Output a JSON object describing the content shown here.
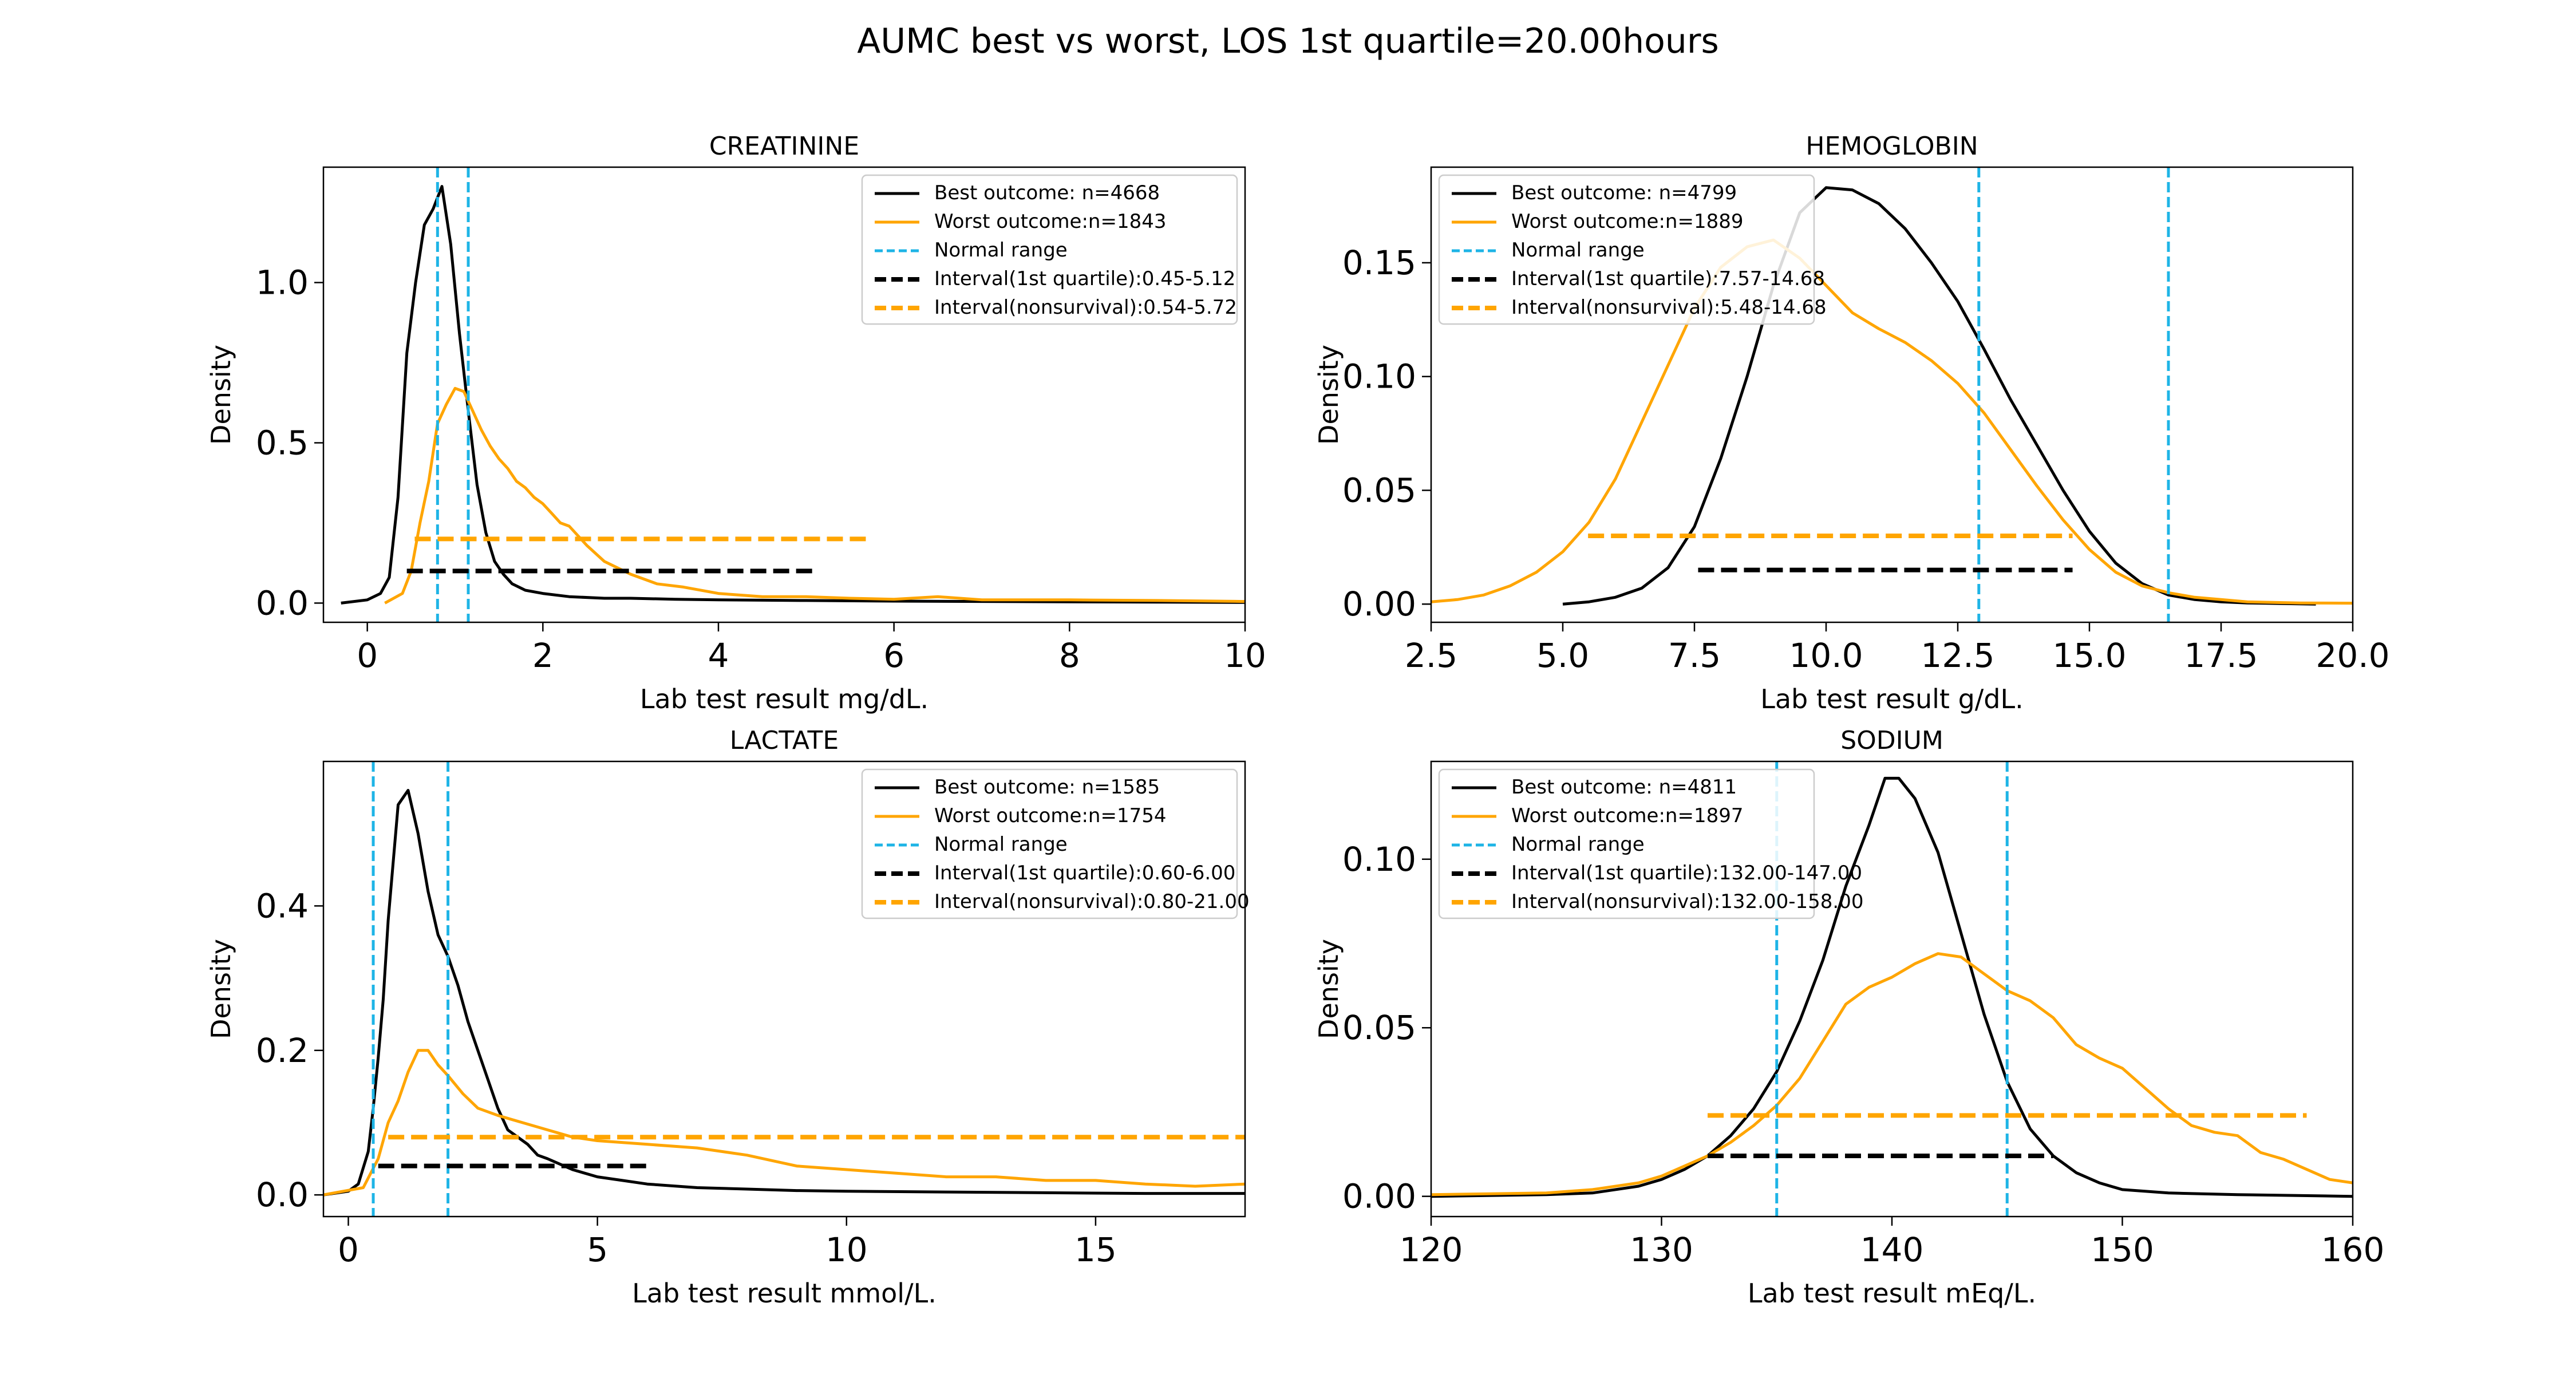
{
  "suptitle": "AUMC best vs worst, LOS 1st quartile=20.00hours",
  "colors": {
    "best": "#000000",
    "worst": "#FFA500",
    "normal": "#1EB4E6"
  },
  "chart_data": [
    {
      "type": "line",
      "title": "CREATININE",
      "xlabel": "Lab test result mg/dL.",
      "ylabel": "Density",
      "xlim": [
        -0.5,
        10
      ],
      "ylim": [
        -0.06,
        1.36
      ],
      "xticks": [
        0,
        2,
        4,
        6,
        8,
        10
      ],
      "xtick_labels": [
        "0",
        "2",
        "4",
        "6",
        "8",
        "10"
      ],
      "yticks": [
        0,
        0.5,
        1.0
      ],
      "ytick_labels": [
        "0.0",
        "0.5",
        "1.0"
      ],
      "legend": {
        "position": "upper right",
        "entries": [
          "Best outcome: n=4668",
          "Worst outcome:n=1843",
          "Normal range",
          "Interval(1st quartile):0.45-5.12",
          "Interval(nonsurvival):0.54-5.72"
        ]
      },
      "series": [
        {
          "name": "Best outcome: n=4668",
          "role": "best",
          "x": [
            -0.3,
            0,
            0.15,
            0.25,
            0.35,
            0.45,
            0.55,
            0.65,
            0.75,
            0.85,
            0.95,
            1.05,
            1.15,
            1.25,
            1.35,
            1.45,
            1.55,
            1.65,
            1.8,
            2.0,
            2.3,
            2.7,
            3.0,
            3.5,
            4.0,
            5.0,
            6.0,
            7.0,
            8.0,
            9.0,
            10.0
          ],
          "y": [
            0.0,
            0.01,
            0.03,
            0.08,
            0.33,
            0.78,
            1.0,
            1.18,
            1.23,
            1.3,
            1.12,
            0.84,
            0.6,
            0.37,
            0.22,
            0.13,
            0.09,
            0.06,
            0.04,
            0.03,
            0.02,
            0.015,
            0.015,
            0.012,
            0.01,
            0.008,
            0.006,
            0.005,
            0.004,
            0.003,
            0.002
          ]
        },
        {
          "name": "Worst outcome:n=1843",
          "role": "worst",
          "x": [
            0.2,
            0.4,
            0.5,
            0.6,
            0.7,
            0.8,
            0.9,
            1.0,
            1.1,
            1.2,
            1.3,
            1.4,
            1.5,
            1.6,
            1.7,
            1.8,
            1.9,
            2.0,
            2.1,
            2.2,
            2.3,
            2.5,
            2.7,
            3.0,
            3.3,
            3.6,
            4.0,
            4.5,
            5.0,
            5.5,
            6.0,
            6.5,
            7.0,
            8.0,
            9.0,
            10.0
          ],
          "y": [
            0.0,
            0.03,
            0.1,
            0.25,
            0.38,
            0.56,
            0.62,
            0.67,
            0.66,
            0.6,
            0.54,
            0.49,
            0.45,
            0.42,
            0.38,
            0.36,
            0.33,
            0.31,
            0.28,
            0.25,
            0.24,
            0.18,
            0.13,
            0.09,
            0.06,
            0.05,
            0.03,
            0.02,
            0.02,
            0.015,
            0.012,
            0.02,
            0.01,
            0.01,
            0.008,
            0.005
          ]
        }
      ],
      "normal_range": [
        0.8,
        1.15
      ],
      "intervals": [
        {
          "name": "Interval(1st quartile):0.45-5.12",
          "role": "best",
          "from": 0.45,
          "to": 5.12,
          "y": 0.1
        },
        {
          "name": "Interval(nonsurvival):0.54-5.72",
          "role": "worst",
          "from": 0.54,
          "to": 5.72,
          "y": 0.2
        }
      ]
    },
    {
      "type": "line",
      "title": "HEMOGLOBIN",
      "xlabel": "Lab test result g/dL.",
      "ylabel": "Density",
      "xlim": [
        2.5,
        20
      ],
      "ylim": [
        -0.008,
        0.192
      ],
      "xticks": [
        2.5,
        5,
        7.5,
        10,
        12.5,
        15,
        17.5,
        20
      ],
      "xtick_labels": [
        "2.5",
        "5.0",
        "7.5",
        "10.0",
        "12.5",
        "15.0",
        "17.5",
        "20.0"
      ],
      "yticks": [
        0,
        0.05,
        0.1,
        0.15
      ],
      "ytick_labels": [
        "0.00",
        "0.05",
        "0.10",
        "0.15"
      ],
      "legend": {
        "position": "upper left",
        "entries": [
          "Best outcome: n=4799",
          "Worst outcome:n=1889",
          "Normal range",
          "Interval(1st quartile):7.57-14.68",
          "Interval(nonsurvival):5.48-14.68"
        ]
      },
      "series": [
        {
          "name": "Best outcome: n=4799",
          "role": "best",
          "x": [
            5.0,
            5.5,
            6.0,
            6.5,
            7.0,
            7.5,
            8.0,
            8.5,
            9.0,
            9.5,
            10.0,
            10.5,
            11.0,
            11.5,
            12.0,
            12.5,
            13.0,
            13.5,
            14.0,
            14.5,
            15.0,
            15.5,
            16.0,
            16.5,
            17.0,
            17.5,
            18.0,
            19.3
          ],
          "y": [
            0.0,
            0.001,
            0.003,
            0.007,
            0.016,
            0.034,
            0.064,
            0.1,
            0.14,
            0.172,
            0.183,
            0.182,
            0.176,
            0.165,
            0.15,
            0.133,
            0.112,
            0.09,
            0.07,
            0.05,
            0.032,
            0.018,
            0.009,
            0.004,
            0.002,
            0.001,
            0.0005,
            0.0
          ]
        },
        {
          "name": "Worst outcome:n=1889",
          "role": "worst",
          "x": [
            2.5,
            3.0,
            3.5,
            4.0,
            4.5,
            5.0,
            5.5,
            6.0,
            6.5,
            7.0,
            7.5,
            8.0,
            8.5,
            9.0,
            9.5,
            10.0,
            10.5,
            11.0,
            11.5,
            12.0,
            12.5,
            13.0,
            13.5,
            14.0,
            14.5,
            15.0,
            15.5,
            16.0,
            16.5,
            17.0,
            17.5,
            18.0,
            19.0,
            20.0
          ],
          "y": [
            0.001,
            0.002,
            0.004,
            0.008,
            0.014,
            0.023,
            0.036,
            0.055,
            0.08,
            0.105,
            0.13,
            0.148,
            0.157,
            0.16,
            0.152,
            0.14,
            0.128,
            0.121,
            0.115,
            0.107,
            0.097,
            0.084,
            0.068,
            0.052,
            0.037,
            0.024,
            0.014,
            0.008,
            0.005,
            0.003,
            0.002,
            0.001,
            0.0005,
            0.0004
          ]
        }
      ],
      "normal_range": [
        12.9,
        16.5
      ],
      "intervals": [
        {
          "name": "Interval(1st quartile):7.57-14.68",
          "role": "best",
          "from": 7.57,
          "to": 14.68,
          "y": 0.015
        },
        {
          "name": "Interval(nonsurvival):5.48-14.68",
          "role": "worst",
          "from": 5.48,
          "to": 14.68,
          "y": 0.03
        }
      ]
    },
    {
      "type": "line",
      "title": "LACTATE",
      "xlabel": "Lab test result mmol/L.",
      "ylabel": "Density",
      "xlim": [
        -0.5,
        18
      ],
      "ylim": [
        -0.03,
        0.6
      ],
      "xticks": [
        0,
        5,
        10,
        15
      ],
      "xtick_labels": [
        "0",
        "5",
        "10",
        "15"
      ],
      "yticks": [
        0,
        0.2,
        0.4
      ],
      "ytick_labels": [
        "0.0",
        "0.2",
        "0.4"
      ],
      "legend": {
        "position": "upper right",
        "entries": [
          "Best outcome: n=1585",
          "Worst outcome:n=1754",
          "Normal range",
          "Interval(1st quartile):0.60-6.00",
          "Interval(nonsurvival):0.80-21.00"
        ]
      },
      "series": [
        {
          "name": "Best outcome: n=1585",
          "role": "best",
          "x": [
            -0.5,
            0,
            0.2,
            0.4,
            0.5,
            0.6,
            0.7,
            0.8,
            0.9,
            1.0,
            1.1,
            1.2,
            1.4,
            1.6,
            1.8,
            2.0,
            2.2,
            2.4,
            2.6,
            2.8,
            3.0,
            3.2,
            3.4,
            3.6,
            3.8,
            4.0,
            4.5,
            5.0,
            5.5,
            6.0,
            7.0,
            8.0,
            9.0,
            10.0,
            12.0,
            14.0,
            16.0,
            18.0
          ],
          "y": [
            0.0,
            0.005,
            0.015,
            0.06,
            0.12,
            0.19,
            0.27,
            0.38,
            0.46,
            0.54,
            0.55,
            0.56,
            0.5,
            0.42,
            0.36,
            0.33,
            0.29,
            0.24,
            0.2,
            0.16,
            0.12,
            0.09,
            0.08,
            0.07,
            0.055,
            0.05,
            0.035,
            0.025,
            0.02,
            0.015,
            0.01,
            0.008,
            0.006,
            0.005,
            0.004,
            0.003,
            0.002,
            0.002
          ]
        },
        {
          "name": "Worst outcome:n=1754",
          "role": "worst",
          "x": [
            -0.5,
            0.3,
            0.6,
            0.8,
            1.0,
            1.2,
            1.4,
            1.6,
            1.8,
            2.0,
            2.3,
            2.6,
            3.0,
            3.5,
            4.0,
            4.5,
            5.0,
            6.0,
            7.0,
            8.0,
            9.0,
            10.0,
            11.0,
            12.0,
            13.0,
            14.0,
            15.0,
            16.0,
            17.0,
            18.0
          ],
          "y": [
            0.0,
            0.01,
            0.05,
            0.1,
            0.13,
            0.17,
            0.2,
            0.2,
            0.18,
            0.165,
            0.14,
            0.12,
            0.11,
            0.1,
            0.09,
            0.08,
            0.075,
            0.07,
            0.065,
            0.055,
            0.04,
            0.035,
            0.03,
            0.025,
            0.025,
            0.02,
            0.02,
            0.015,
            0.012,
            0.015
          ]
        }
      ],
      "normal_range": [
        0.5,
        2.0
      ],
      "intervals": [
        {
          "name": "Interval(1st quartile):0.60-6.00",
          "role": "best",
          "from": 0.6,
          "to": 6.0,
          "y": 0.04
        },
        {
          "name": "Interval(nonsurvival):0.80-21.00",
          "role": "worst",
          "from": 0.8,
          "to": 21.0,
          "y": 0.08
        }
      ]
    },
    {
      "type": "line",
      "title": "SODIUM",
      "xlabel": "Lab test result mEq/L.",
      "ylabel": "Density",
      "xlim": [
        120,
        160
      ],
      "ylim": [
        -0.006,
        0.129
      ],
      "xticks": [
        120,
        130,
        140,
        150,
        160
      ],
      "xtick_labels": [
        "120",
        "130",
        "140",
        "150",
        "160"
      ],
      "yticks": [
        0,
        0.05,
        0.1
      ],
      "ytick_labels": [
        "0.00",
        "0.05",
        "0.10"
      ],
      "legend": {
        "position": "upper left",
        "entries": [
          "Best outcome: n=4811",
          "Worst outcome:n=1897",
          "Normal range",
          "Interval(1st quartile):132.00-147.00",
          "Interval(nonsurvival):132.00-158.00"
        ]
      },
      "series": [
        {
          "name": "Best outcome: n=4811",
          "role": "best",
          "x": [
            120,
            125,
            127,
            129,
            130,
            131,
            132,
            133,
            134,
            135,
            136,
            137,
            138,
            139,
            139.7,
            140.3,
            141,
            142,
            143,
            144,
            145,
            146,
            147,
            148,
            149,
            150,
            152,
            155,
            160
          ],
          "y": [
            0.0,
            0.0005,
            0.001,
            0.003,
            0.005,
            0.008,
            0.012,
            0.018,
            0.026,
            0.037,
            0.052,
            0.07,
            0.092,
            0.11,
            0.124,
            0.124,
            0.118,
            0.102,
            0.078,
            0.054,
            0.034,
            0.02,
            0.012,
            0.007,
            0.004,
            0.002,
            0.001,
            0.0005,
            0.0
          ]
        },
        {
          "name": "Worst outcome:n=1897",
          "role": "worst",
          "x": [
            120,
            125,
            127,
            129,
            130,
            131,
            132,
            133,
            134,
            135,
            136,
            137,
            138,
            139,
            140,
            141,
            142,
            143,
            144,
            145,
            146,
            147,
            148,
            149,
            150,
            151,
            152,
            153,
            154,
            155,
            156,
            157,
            158,
            159,
            160
          ],
          "y": [
            0.0005,
            0.001,
            0.002,
            0.004,
            0.006,
            0.009,
            0.012,
            0.016,
            0.021,
            0.027,
            0.035,
            0.046,
            0.057,
            0.062,
            0.065,
            0.069,
            0.072,
            0.071,
            0.066,
            0.061,
            0.058,
            0.053,
            0.045,
            0.041,
            0.038,
            0.032,
            0.026,
            0.021,
            0.019,
            0.018,
            0.013,
            0.011,
            0.008,
            0.005,
            0.004
          ]
        }
      ],
      "normal_range": [
        135,
        145
      ],
      "intervals": [
        {
          "name": "Interval(1st quartile):132.00-147.00",
          "role": "best",
          "from": 132.0,
          "to": 147.0,
          "y": 0.012
        },
        {
          "name": "Interval(nonsurvival):132.00-158.00",
          "role": "worst",
          "from": 132.0,
          "to": 158.0,
          "y": 0.024
        }
      ]
    }
  ]
}
